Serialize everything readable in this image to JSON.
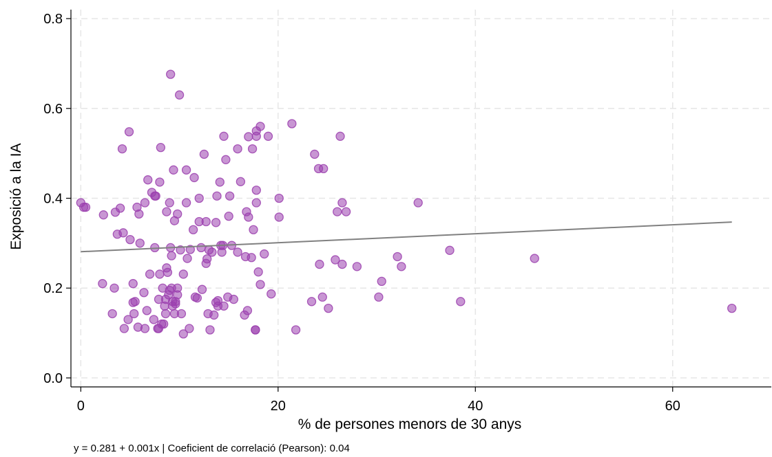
{
  "chart_data": {
    "type": "scatter",
    "title": "",
    "xlabel": "% de persones menors de 30 anys",
    "ylabel": "Exposició a la IA",
    "xlim": [
      -1,
      70
    ],
    "ylim": [
      -0.02,
      0.82
    ],
    "xticks": [
      0,
      20,
      40,
      60
    ],
    "yticks": [
      0.0,
      0.2,
      0.4,
      0.6,
      0.8
    ],
    "xtick_labels": [
      "0",
      "20",
      "40",
      "60"
    ],
    "ytick_labels": [
      "0.0",
      "0.2",
      "0.4",
      "0.6",
      "0.8"
    ],
    "grid": true,
    "point_color": "#9b3fae",
    "line_color": "#808080",
    "fit_line": {
      "intercept": 0.281,
      "slope": 0.001,
      "x_range": [
        0,
        66
      ]
    },
    "points": [
      [
        0.0,
        0.39
      ],
      [
        0.3,
        0.38
      ],
      [
        0.5,
        0.38
      ],
      [
        2.3,
        0.363
      ],
      [
        2.2,
        0.21
      ],
      [
        3.2,
        0.143
      ],
      [
        3.4,
        0.2
      ],
      [
        3.5,
        0.369
      ],
      [
        3.7,
        0.32
      ],
      [
        4.0,
        0.378
      ],
      [
        4.2,
        0.51
      ],
      [
        4.3,
        0.323
      ],
      [
        4.4,
        0.11
      ],
      [
        4.8,
        0.13
      ],
      [
        4.9,
        0.548
      ],
      [
        5.0,
        0.308
      ],
      [
        5.3,
        0.168
      ],
      [
        5.3,
        0.21
      ],
      [
        5.4,
        0.143
      ],
      [
        5.5,
        0.17
      ],
      [
        5.7,
        0.38
      ],
      [
        5.8,
        0.113
      ],
      [
        5.9,
        0.365
      ],
      [
        6.0,
        0.3
      ],
      [
        6.4,
        0.19
      ],
      [
        6.5,
        0.11
      ],
      [
        6.5,
        0.39
      ],
      [
        6.7,
        0.15
      ],
      [
        6.8,
        0.441
      ],
      [
        7.0,
        0.231
      ],
      [
        7.2,
        0.413
      ],
      [
        7.4,
        0.13
      ],
      [
        7.5,
        0.405
      ],
      [
        7.5,
        0.29
      ],
      [
        7.6,
        0.405
      ],
      [
        7.8,
        0.11
      ],
      [
        7.9,
        0.175
      ],
      [
        7.9,
        0.11
      ],
      [
        8.0,
        0.436
      ],
      [
        8.0,
        0.231
      ],
      [
        8.1,
        0.513
      ],
      [
        8.2,
        0.12
      ],
      [
        8.3,
        0.2
      ],
      [
        8.4,
        0.12
      ],
      [
        8.5,
        0.16
      ],
      [
        8.6,
        0.143
      ],
      [
        8.6,
        0.175
      ],
      [
        8.7,
        0.245
      ],
      [
        8.7,
        0.37
      ],
      [
        8.8,
        0.235
      ],
      [
        8.9,
        0.185
      ],
      [
        9.0,
        0.195
      ],
      [
        9.0,
        0.39
      ],
      [
        9.1,
        0.676
      ],
      [
        9.1,
        0.29
      ],
      [
        9.2,
        0.2
      ],
      [
        9.2,
        0.272
      ],
      [
        9.3,
        0.16
      ],
      [
        9.3,
        0.17
      ],
      [
        9.4,
        0.463
      ],
      [
        9.5,
        0.143
      ],
      [
        9.5,
        0.35
      ],
      [
        9.6,
        0.165
      ],
      [
        9.6,
        0.17
      ],
      [
        9.8,
        0.185
      ],
      [
        9.8,
        0.365
      ],
      [
        9.8,
        0.2
      ],
      [
        10.0,
        0.63
      ],
      [
        10.1,
        0.285
      ],
      [
        10.2,
        0.143
      ],
      [
        10.4,
        0.098
      ],
      [
        10.4,
        0.231
      ],
      [
        10.7,
        0.39
      ],
      [
        10.7,
        0.463
      ],
      [
        10.8,
        0.266
      ],
      [
        11.0,
        0.11
      ],
      [
        11.1,
        0.286
      ],
      [
        11.4,
        0.33
      ],
      [
        11.5,
        0.446
      ],
      [
        11.6,
        0.18
      ],
      [
        11.8,
        0.178
      ],
      [
        12.0,
        0.4
      ],
      [
        12.0,
        0.348
      ],
      [
        12.2,
        0.29
      ],
      [
        12.3,
        0.197
      ],
      [
        12.5,
        0.498
      ],
      [
        12.7,
        0.348
      ],
      [
        12.7,
        0.255
      ],
      [
        12.8,
        0.265
      ],
      [
        12.9,
        0.143
      ],
      [
        13.0,
        0.285
      ],
      [
        13.1,
        0.107
      ],
      [
        13.3,
        0.28
      ],
      [
        13.5,
        0.14
      ],
      [
        13.7,
        0.168
      ],
      [
        13.7,
        0.346
      ],
      [
        13.8,
        0.405
      ],
      [
        13.9,
        0.172
      ],
      [
        13.9,
        0.16
      ],
      [
        14.1,
        0.436
      ],
      [
        14.2,
        0.295
      ],
      [
        14.3,
        0.28
      ],
      [
        14.4,
        0.295
      ],
      [
        14.5,
        0.16
      ],
      [
        14.5,
        0.538
      ],
      [
        14.7,
        0.486
      ],
      [
        14.9,
        0.18
      ],
      [
        15.0,
        0.36
      ],
      [
        15.1,
        0.405
      ],
      [
        15.3,
        0.295
      ],
      [
        15.5,
        0.175
      ],
      [
        15.9,
        0.51
      ],
      [
        15.9,
        0.28
      ],
      [
        16.2,
        0.437
      ],
      [
        16.6,
        0.14
      ],
      [
        16.7,
        0.27
      ],
      [
        16.8,
        0.37
      ],
      [
        16.9,
        0.15
      ],
      [
        17.0,
        0.537
      ],
      [
        17.0,
        0.358
      ],
      [
        17.3,
        0.268
      ],
      [
        17.4,
        0.51
      ],
      [
        17.5,
        0.33
      ],
      [
        17.7,
        0.107
      ],
      [
        17.7,
        0.107
      ],
      [
        17.8,
        0.55
      ],
      [
        17.8,
        0.538
      ],
      [
        17.8,
        0.418
      ],
      [
        17.8,
        0.39
      ],
      [
        18.0,
        0.236
      ],
      [
        18.2,
        0.208
      ],
      [
        18.2,
        0.56
      ],
      [
        18.6,
        0.276
      ],
      [
        19.0,
        0.538
      ],
      [
        19.3,
        0.187
      ],
      [
        20.1,
        0.4
      ],
      [
        20.1,
        0.358
      ],
      [
        21.4,
        0.566
      ],
      [
        21.8,
        0.107
      ],
      [
        23.4,
        0.17
      ],
      [
        23.7,
        0.498
      ],
      [
        24.1,
        0.466
      ],
      [
        24.2,
        0.253
      ],
      [
        24.5,
        0.18
      ],
      [
        24.6,
        0.466
      ],
      [
        25.1,
        0.155
      ],
      [
        25.8,
        0.263
      ],
      [
        26.0,
        0.37
      ],
      [
        26.3,
        0.538
      ],
      [
        26.5,
        0.39
      ],
      [
        26.5,
        0.253
      ],
      [
        26.9,
        0.37
      ],
      [
        28.0,
        0.248
      ],
      [
        30.2,
        0.18
      ],
      [
        30.5,
        0.215
      ],
      [
        32.1,
        0.27
      ],
      [
        32.5,
        0.248
      ],
      [
        34.2,
        0.39
      ],
      [
        37.4,
        0.284
      ],
      [
        38.5,
        0.17
      ],
      [
        46.0,
        0.266
      ],
      [
        66.0,
        0.155
      ]
    ]
  },
  "footer": {
    "note": "y = 0.281 + 0.001x   |   Coeficient de correlació (Pearson): 0.04"
  }
}
